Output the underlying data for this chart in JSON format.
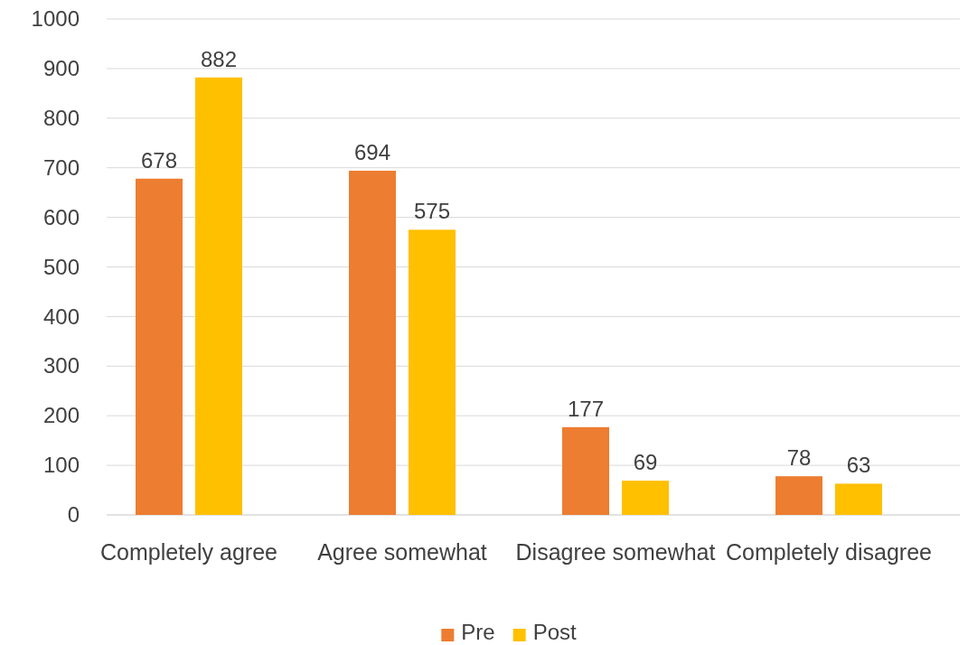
{
  "chart_data": {
    "type": "bar",
    "categories": [
      "Completely agree",
      "Agree somewhat",
      "Disagree somewhat",
      "Completely disagree"
    ],
    "series": [
      {
        "name": "Pre",
        "color": "#ed7d31",
        "values": [
          678,
          694,
          177,
          78
        ]
      },
      {
        "name": "Post",
        "color": "#ffc000",
        "values": [
          882,
          575,
          69,
          63
        ]
      }
    ],
    "ylim": [
      0,
      1000
    ],
    "yticks": [
      0,
      100,
      200,
      300,
      400,
      500,
      600,
      700,
      800,
      900,
      1000
    ],
    "grid": "y",
    "legend": "bottom",
    "data_labels": true
  }
}
